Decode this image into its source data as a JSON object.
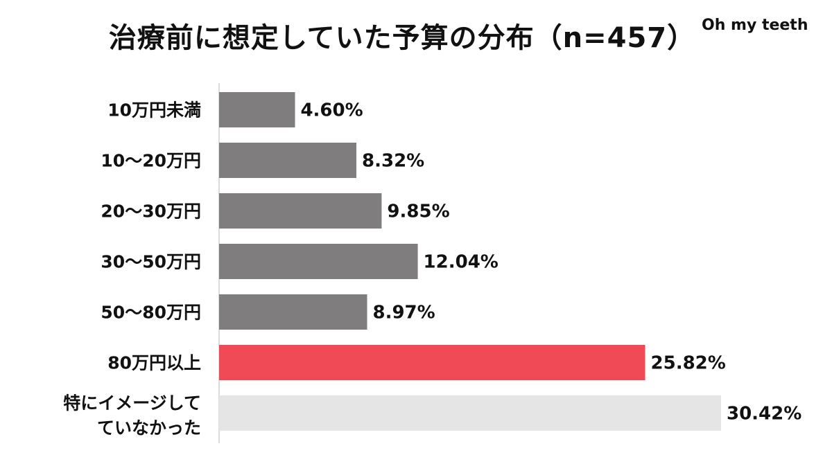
{
  "header": {
    "title": "治療前に想定していた予算の分布（n=457）",
    "brand": "Oh my teeth"
  },
  "chart_data": {
    "type": "bar",
    "orientation": "horizontal",
    "title": "治療前に想定していた予算の分布（n=457）",
    "xlabel": "",
    "ylabel": "",
    "xlim": [
      0,
      35
    ],
    "grid": false,
    "legend": "none",
    "categories": [
      [
        "10万円未満"
      ],
      [
        "10〜20万円"
      ],
      [
        "20〜30万円"
      ],
      [
        "30〜50万円"
      ],
      [
        "50〜80万円"
      ],
      [
        "80万円以上"
      ],
      [
        "特にイメージして",
        "ていなかった"
      ]
    ],
    "values": [
      4.6,
      8.32,
      9.85,
      12.04,
      8.97,
      25.82,
      30.42
    ],
    "value_labels": [
      "4.60%",
      "8.32%",
      "9.85%",
      "12.04%",
      "8.97%",
      "25.82%",
      "30.42%"
    ],
    "colors": [
      "#7f7d7e",
      "#7f7d7e",
      "#7f7d7e",
      "#7f7d7e",
      "#7f7d7e",
      "#ef4a55",
      "#e6e5e6"
    ]
  }
}
